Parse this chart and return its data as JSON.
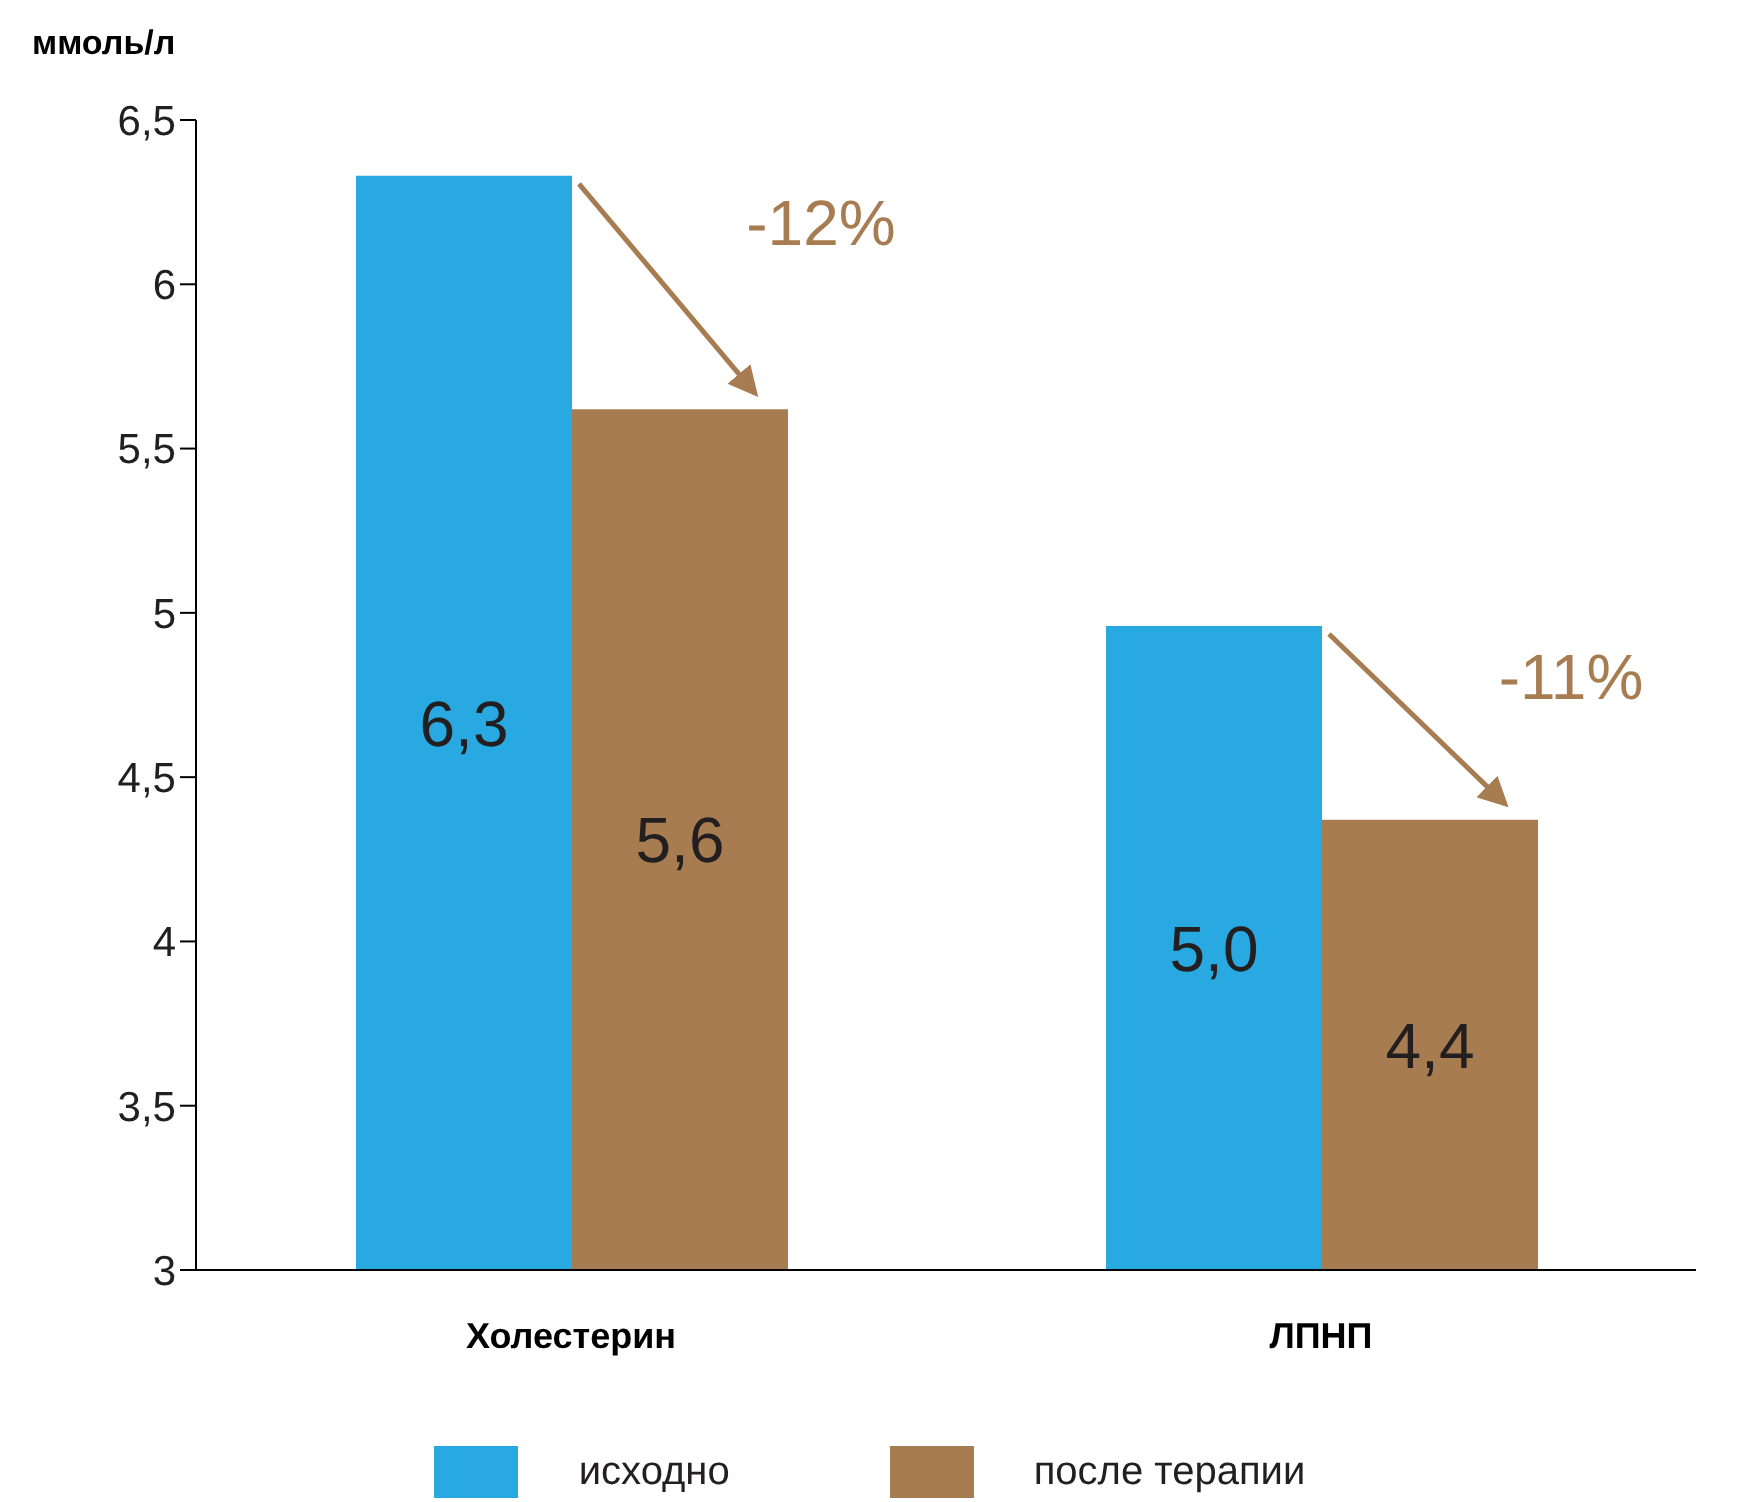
{
  "chart_data": {
    "type": "bar",
    "ylabel": "ммоль/л",
    "categories": [
      "Холестерин",
      "ЛПНП"
    ],
    "series": [
      {
        "name": "исходно",
        "color": "#29a9e1",
        "values": [
          6.33,
          4.96
        ],
        "value_labels": [
          "6,3",
          "5,0"
        ]
      },
      {
        "name": "после терапии",
        "color": "#a87c51",
        "values": [
          5.62,
          4.37
        ],
        "value_labels": [
          "5,6",
          "4,4"
        ]
      }
    ],
    "ylim": [
      3,
      6.5
    ],
    "yticks": [
      {
        "value": 3,
        "label": "3"
      },
      {
        "value": 3.5,
        "label": "3,5"
      },
      {
        "value": 4,
        "label": "4"
      },
      {
        "value": 4.5,
        "label": "4,5"
      },
      {
        "value": 5,
        "label": "5"
      },
      {
        "value": 5.5,
        "label": "5,5"
      },
      {
        "value": 6,
        "label": "6"
      },
      {
        "value": 6.5,
        "label": "6,5"
      }
    ],
    "annotations": [
      {
        "text": "-12%",
        "x": "Холестерин",
        "y": 6.17
      },
      {
        "text": "-11%",
        "x": "ЛПНП",
        "y": 4.79
      }
    ],
    "grid": false,
    "legend": "bottom"
  }
}
